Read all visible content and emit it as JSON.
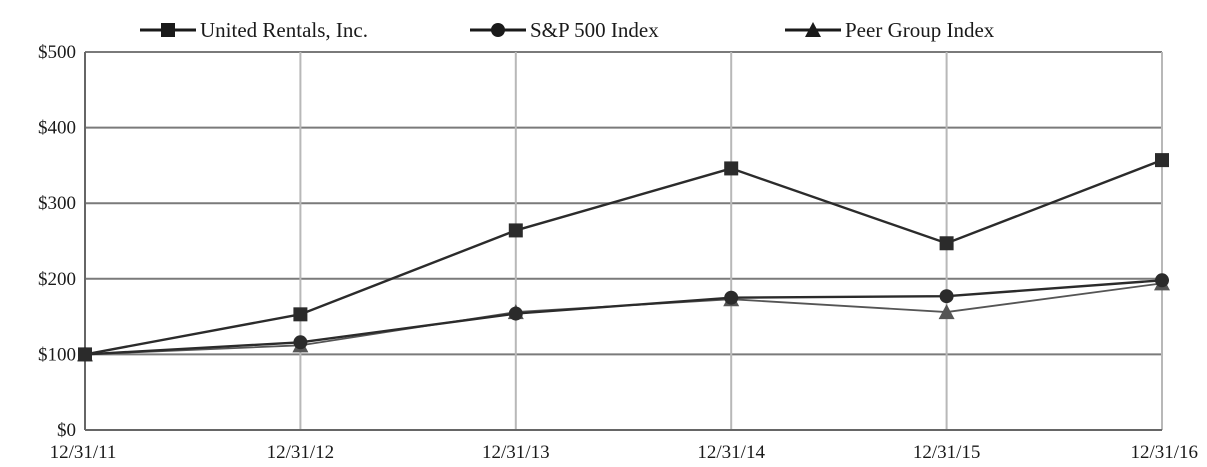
{
  "chart_data": {
    "type": "line",
    "title": "",
    "xlabel": "",
    "ylabel": "",
    "categories": [
      "12/31/11",
      "12/31/12",
      "12/31/13",
      "12/31/14",
      "12/31/15",
      "12/31/16"
    ],
    "ylim": [
      0,
      500
    ],
    "yticks": [
      0,
      100,
      200,
      300,
      400,
      500
    ],
    "ytick_labels": [
      "$0",
      "$100",
      "$200",
      "$300",
      "$400",
      "$500"
    ],
    "grid": true,
    "legend_position": "top",
    "series": [
      {
        "name": "United Rentals, Inc.",
        "marker": "square",
        "color": "#2b2b2b",
        "values": [
          100,
          153,
          264,
          346,
          247,
          357
        ]
      },
      {
        "name": "S&P 500 Index",
        "marker": "circle",
        "color": "#2b2b2b",
        "values": [
          100,
          116,
          154,
          175,
          177,
          198
        ]
      },
      {
        "name": "Peer Group Index",
        "marker": "triangle",
        "color": "#555555",
        "values": [
          100,
          112,
          156,
          173,
          156,
          194
        ]
      }
    ]
  }
}
